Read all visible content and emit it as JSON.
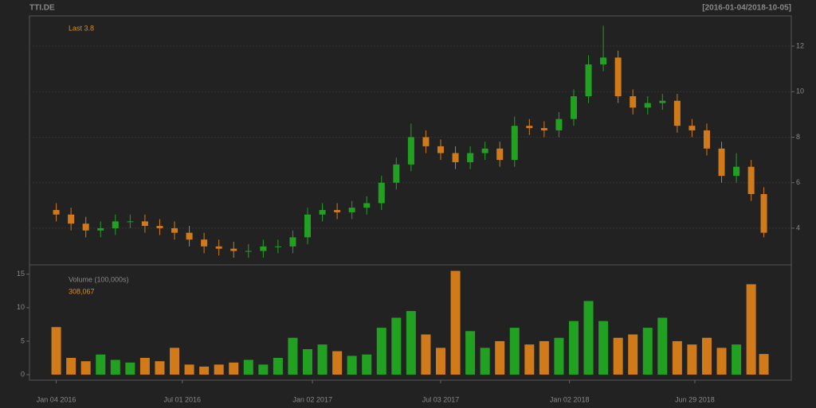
{
  "chart_data": {
    "type": "candlestick",
    "title": "TTI.DE",
    "date_range": "[2016-01-04/2018-10-05]",
    "last_label": "Last 3.8",
    "volume_label": "Volume (100,000s)",
    "last_volume": {
      "value": 3.08067,
      "label": "308,067"
    },
    "up_color": "#22a022",
    "down_color": "#d07a1a",
    "x": [
      "2016-01-04",
      "2016-01-25",
      "2016-02-15",
      "2016-03-07",
      "2016-03-28",
      "2016-04-18",
      "2016-05-09",
      "2016-05-30",
      "2016-06-20",
      "2016-07-11",
      "2016-08-01",
      "2016-08-22",
      "2016-09-12",
      "2016-10-03",
      "2016-10-24",
      "2016-11-14",
      "2016-12-05",
      "2016-12-26",
      "2017-01-16",
      "2017-02-06",
      "2017-02-27",
      "2017-03-20",
      "2017-04-10",
      "2017-05-01",
      "2017-05-22",
      "2017-06-12",
      "2017-07-03",
      "2017-07-24",
      "2017-08-14",
      "2017-09-04",
      "2017-09-25",
      "2017-10-16",
      "2017-11-06",
      "2017-11-27",
      "2017-12-18",
      "2018-01-08",
      "2018-01-29",
      "2018-02-19",
      "2018-03-12",
      "2018-04-02",
      "2018-04-23",
      "2018-05-14",
      "2018-06-04",
      "2018-06-25",
      "2018-07-16",
      "2018-08-06",
      "2018-08-27",
      "2018-09-17",
      "2018-10-05"
    ],
    "open": [
      4.8,
      4.6,
      4.2,
      3.9,
      4.0,
      4.3,
      4.3,
      4.1,
      4.0,
      3.8,
      3.5,
      3.2,
      3.1,
      3.0,
      3.0,
      3.2,
      3.2,
      3.6,
      4.6,
      4.8,
      4.7,
      4.9,
      5.1,
      6.0,
      6.8,
      8.0,
      7.6,
      7.3,
      6.9,
      7.3,
      7.5,
      7.0,
      8.5,
      8.4,
      8.3,
      8.8,
      9.8,
      11.2,
      11.5,
      9.8,
      9.3,
      9.5,
      9.6,
      8.5,
      8.3,
      7.5,
      6.3,
      6.7,
      5.5
    ],
    "high": [
      5.1,
      4.9,
      4.5,
      4.3,
      4.6,
      4.6,
      4.6,
      4.4,
      4.3,
      4.1,
      3.8,
      3.5,
      3.4,
      3.3,
      3.5,
      3.5,
      3.9,
      4.9,
      5.1,
      5.1,
      5.2,
      5.4,
      6.3,
      7.1,
      8.6,
      8.3,
      7.9,
      7.6,
      7.6,
      7.8,
      7.8,
      8.9,
      8.8,
      8.7,
      9.1,
      10.1,
      11.6,
      12.9,
      11.8,
      10.1,
      9.8,
      9.9,
      9.9,
      8.8,
      8.6,
      7.8,
      7.3,
      7.0,
      5.8
    ],
    "low": [
      4.3,
      3.9,
      3.6,
      3.6,
      3.7,
      4.0,
      3.8,
      3.7,
      3.5,
      3.2,
      2.9,
      2.8,
      2.7,
      2.7,
      2.7,
      2.9,
      2.9,
      3.3,
      4.3,
      4.4,
      4.4,
      4.6,
      4.8,
      5.7,
      6.5,
      7.3,
      7.0,
      6.6,
      6.6,
      7.0,
      6.7,
      6.7,
      8.1,
      8.0,
      8.0,
      8.5,
      9.5,
      10.9,
      9.5,
      9.0,
      9.0,
      9.2,
      8.2,
      8.0,
      7.2,
      6.0,
      6.0,
      5.2,
      3.6
    ],
    "close": [
      4.6,
      4.2,
      3.9,
      4.0,
      4.3,
      4.3,
      4.1,
      4.0,
      3.8,
      3.5,
      3.2,
      3.1,
      3.0,
      3.0,
      3.2,
      3.2,
      3.6,
      4.6,
      4.8,
      4.7,
      4.9,
      5.1,
      6.0,
      6.8,
      8.0,
      7.6,
      7.3,
      6.9,
      7.3,
      7.5,
      7.0,
      8.5,
      8.4,
      8.3,
      8.8,
      9.8,
      11.2,
      11.5,
      9.8,
      9.3,
      9.5,
      9.6,
      8.5,
      8.3,
      7.5,
      6.3,
      6.7,
      5.5,
      3.8
    ],
    "volume": [
      7.1,
      2.5,
      2.0,
      3.0,
      2.2,
      1.8,
      2.5,
      2.0,
      4.0,
      1.5,
      1.2,
      1.5,
      1.8,
      2.2,
      1.5,
      2.5,
      5.5,
      3.8,
      4.5,
      3.5,
      2.8,
      3.0,
      7.0,
      8.5,
      9.5,
      6.0,
      4.0,
      15.5,
      6.5,
      4.0,
      5.0,
      7.0,
      4.5,
      5.0,
      5.5,
      8.0,
      11.0,
      8.0,
      5.5,
      6.0,
      7.0,
      8.5,
      5.0,
      4.5,
      5.5,
      4.0,
      4.5,
      13.5,
      3.08067
    ],
    "xlim": [
      "2015-11-27",
      "2018-11-13"
    ],
    "xticks": [
      {
        "value": "2016-01-04",
        "label": "Jan 04 2016"
      },
      {
        "value": "2016-07-01",
        "label": "Jul 01 2016"
      },
      {
        "value": "2017-01-02",
        "label": "Jan 02 2017"
      },
      {
        "value": "2017-07-03",
        "label": "Jul 03 2017"
      },
      {
        "value": "2018-01-02",
        "label": "Jan 02 2018"
      },
      {
        "value": "2018-06-29",
        "label": "Jun 29 2018"
      }
    ],
    "ylim": [
      2.39,
      13.33
    ],
    "yticks": [
      4,
      6,
      8,
      10,
      12
    ],
    "y2lim": [
      -0.83,
      16.4
    ],
    "y2ticks": [
      0,
      5,
      10,
      15
    ],
    "grid": true
  }
}
